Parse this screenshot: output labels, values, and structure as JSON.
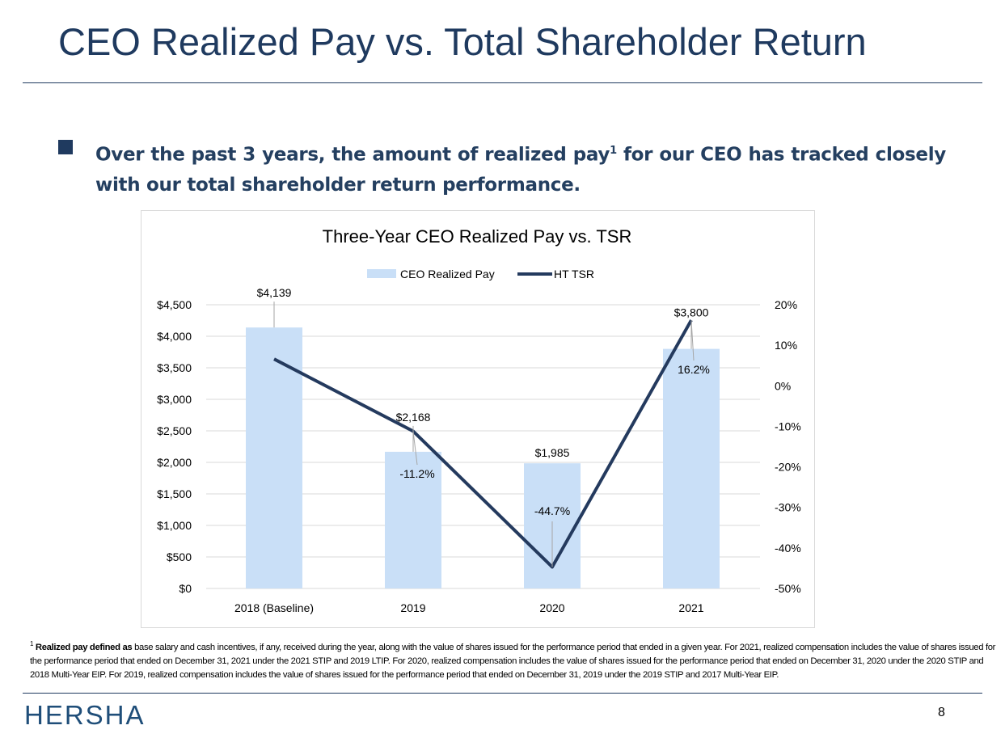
{
  "slide": {
    "title": "CEO Realized Pay vs. Total Shareholder Return",
    "bullet_main": "Over the past 3 years, the amount of realized pay",
    "bullet_sup": "1",
    "bullet_rest": " for our CEO has tracked closely with our total shareholder return performance.",
    "footnote_sup": "1",
    "footnote_bold": "Realized pay defined as",
    "footnote_text": " base salary and cash incentives, if any, received during the year, along with the value of shares issued for the performance period that ended in a given year. For 2021, realized compensation includes the value of shares issued for the performance period that ended on December 31, 2021 under the 2021 STIP and 2019 LTIP. For 2020, realized compensation includes the value of shares issued for the performance period that ended on December 31, 2020 under the 2020 STIP and 2018 Multi-Year EIP. For 2019, realized compensation includes the value of shares issued for the performance period that ended on December 31, 2019 under the 2019 STIP and 2017 Multi-Year EIP.",
    "logo": "HERSHA",
    "page_number": "8"
  },
  "colors": {
    "title": "#1f3a5f",
    "bar": "#c9dff7",
    "line": "#243a5e",
    "grid": "#d9d9d9"
  },
  "chart_data": {
    "type": "bar+line",
    "title": "Three-Year CEO Realized Pay vs. TSR",
    "categories": [
      "2018 (Baseline)",
      "2019",
      "2020",
      "2021"
    ],
    "series": [
      {
        "name": "CEO Realized Pay",
        "type": "bar",
        "axis": "left",
        "values": [
          4139,
          2168,
          1985,
          3800
        ],
        "labels": [
          "$4,139",
          "$2,168",
          "$1,985",
          "$3,800"
        ]
      },
      {
        "name": "HT TSR",
        "type": "line",
        "axis": "right",
        "values": [
          6.6,
          -11.2,
          -44.7,
          16.2
        ],
        "labels": [
          "",
          "-11.2%",
          "-44.7%",
          "16.2%"
        ]
      }
    ],
    "y_left": {
      "range": [
        0,
        4500
      ],
      "ticks": [
        "$0",
        "$500",
        "$1,000",
        "$1,500",
        "$2,000",
        "$2,500",
        "$3,000",
        "$3,500",
        "$4,000",
        "$4,500"
      ]
    },
    "y_right": {
      "range": [
        -50,
        20
      ],
      "ticks": [
        "-50%",
        "-40%",
        "-30%",
        "-20%",
        "-10%",
        "0%",
        "10%",
        "20%"
      ]
    },
    "grid": true,
    "legend": "top"
  }
}
